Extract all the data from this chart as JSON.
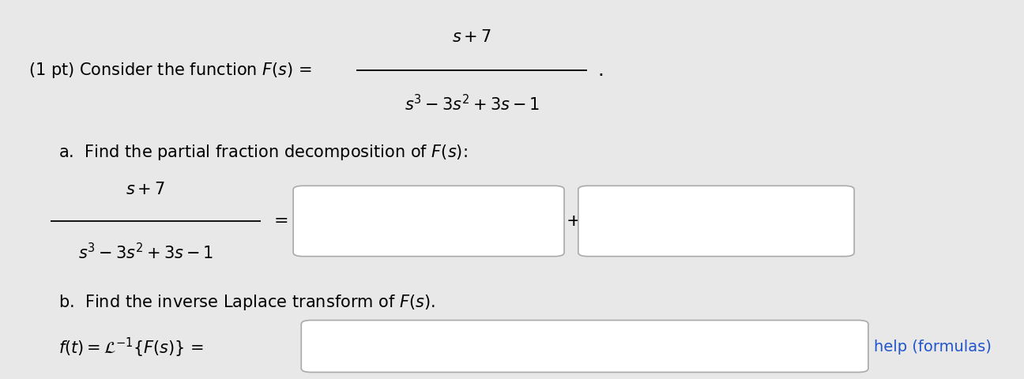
{
  "background_color": "#e8e8e8",
  "text_color": "#000000",
  "link_color": "#2255cc",
  "fig_width": 12.96,
  "fig_height": 4.8
}
